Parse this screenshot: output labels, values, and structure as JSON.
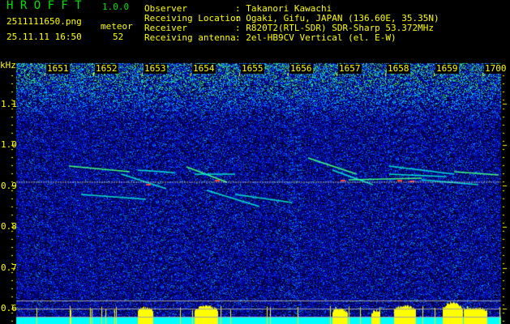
{
  "header": {
    "app_name": "H R O F F T",
    "version": "1.0.0",
    "filename": "2511111650.png",
    "datetime": "25.11.11 16:50",
    "count_label": "meteor",
    "count_value": "52"
  },
  "info": [
    {
      "label": "Observer",
      "value": ": Takanori Kawachi"
    },
    {
      "label": "Receiving Location",
      "value": ": Ogaki, Gifu, JAPAN (136.60E, 35.35N)"
    },
    {
      "label": "Receiver",
      "value": ": R820T2(RTL-SDR) SDR-Sharp 53.372MHz"
    },
    {
      "label": "Receiving antenna",
      "value": ": 2el-HB9CV Vertical (el. E-W)"
    }
  ],
  "colors": {
    "text": "#ffff00",
    "title": "#00e000",
    "background_noise": "#0000a0",
    "echo": "#00ffff",
    "baseline": "#00ffff",
    "peaks": "#ffff00"
  },
  "chart_data": {
    "type": "heatmap",
    "title": "",
    "ylabel": "kHz",
    "xlabel": "",
    "x_tick_labels": [
      "1651",
      "1652",
      "1653",
      "1654",
      "1655",
      "1656",
      "1657",
      "1658",
      "1659",
      "1700"
    ],
    "y_tick_labels": [
      "1.1",
      "1.0",
      "0.9",
      "0.8",
      "0.7",
      "0.6"
    ],
    "ylim": [
      0.56,
      1.2
    ],
    "carrier_line_khz": 0.91,
    "reference_lines_khz": [
      0.62,
      0.6,
      0.58
    ],
    "grid": false
  }
}
